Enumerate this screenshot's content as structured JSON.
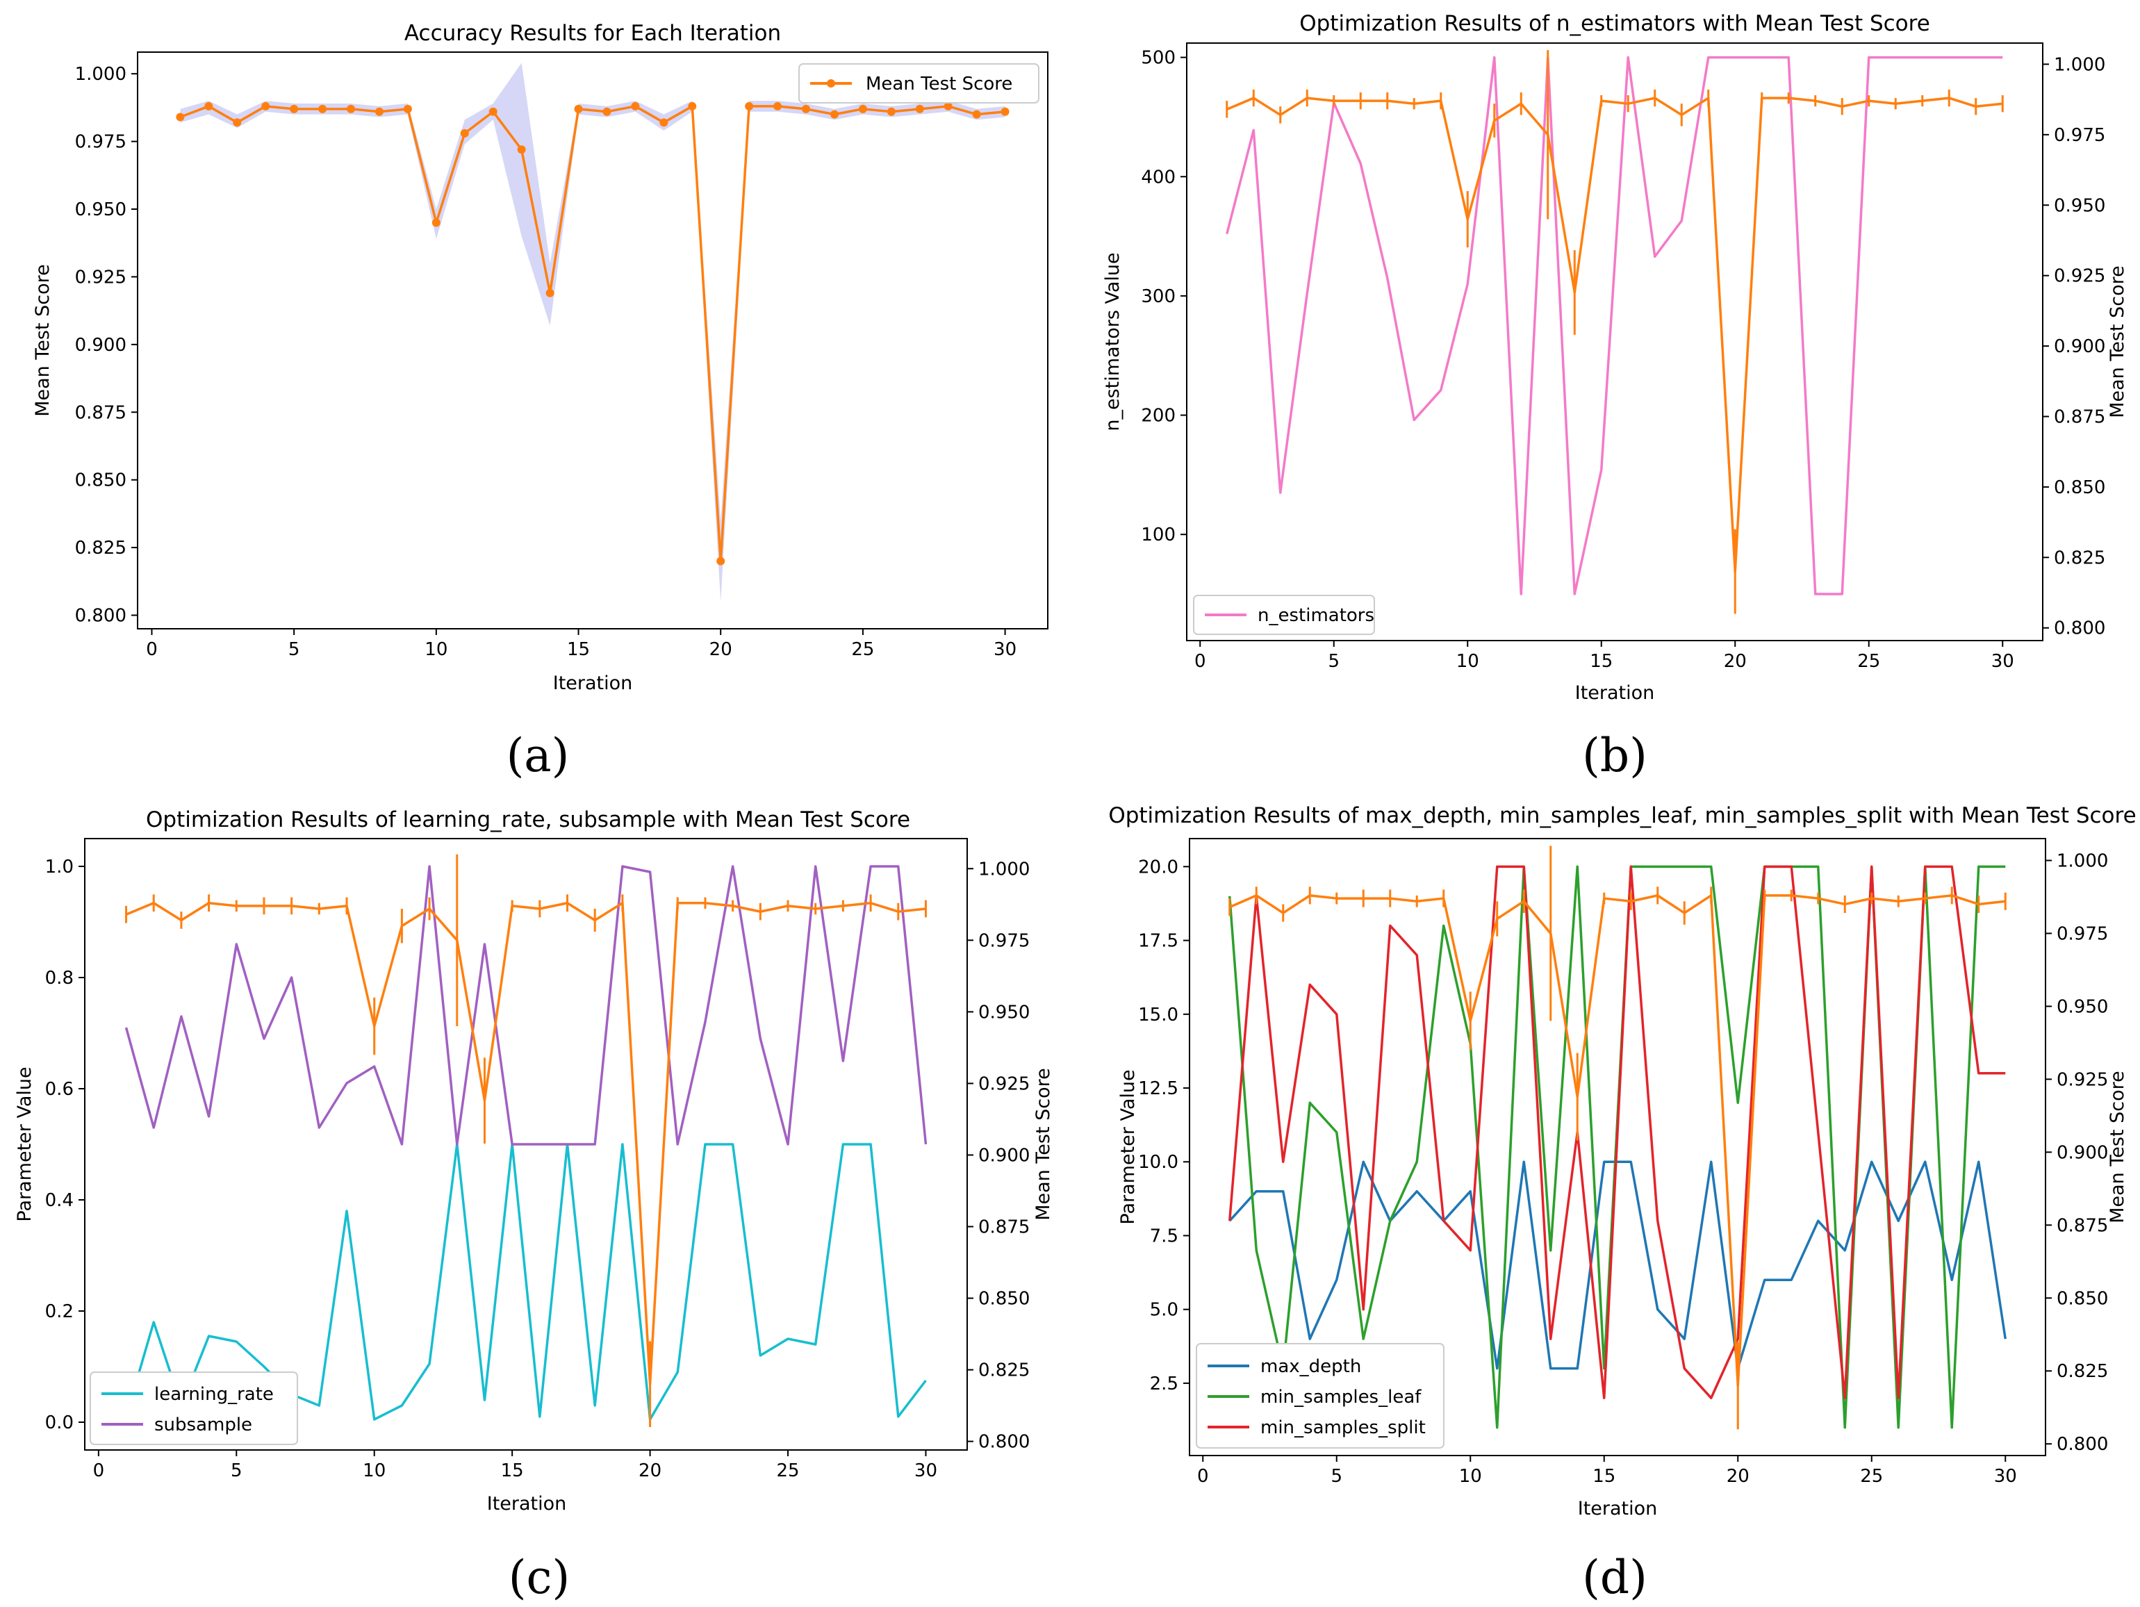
{
  "colors": {
    "orange": "#ff7f0e",
    "pink": "#f47ac8",
    "cyan": "#17becf",
    "purple": "#a160c2",
    "blue": "#1f77b4",
    "green": "#2ca02c",
    "red": "#e3242b",
    "band": "#c8c8f4"
  },
  "panel_labels": [
    "(a)",
    "(b)",
    "(c)",
    "(d)"
  ],
  "chart_data": [
    {
      "type": "line",
      "title": "Accuracy Results for Each Iteration",
      "xlabel": "Iteration",
      "ylabel": "Mean Test Score",
      "xlim": [
        -0.5,
        31.5
      ],
      "ylim": [
        0.795,
        1.008
      ],
      "xticks": [
        0,
        5,
        10,
        15,
        20,
        25,
        30
      ],
      "yticks": [
        0.8,
        0.825,
        0.85,
        0.875,
        0.9,
        0.925,
        0.95,
        0.975,
        1.0
      ],
      "ytick_labels": [
        "0.800",
        "0.825",
        "0.850",
        "0.875",
        "0.900",
        "0.925",
        "0.950",
        "0.975",
        "1.000"
      ],
      "legend_position": "top-right",
      "series": [
        {
          "name": "Mean Test Score",
          "x": [
            1,
            2,
            3,
            4,
            5,
            6,
            7,
            8,
            9,
            10,
            11,
            12,
            13,
            14,
            15,
            16,
            17,
            18,
            19,
            20,
            21,
            22,
            23,
            24,
            25,
            26,
            27,
            28,
            29,
            30
          ],
          "values": [
            0.984,
            0.988,
            0.982,
            0.988,
            0.987,
            0.987,
            0.987,
            0.986,
            0.987,
            0.945,
            0.978,
            0.986,
            0.972,
            0.919,
            0.987,
            0.986,
            0.988,
            0.982,
            0.988,
            0.82,
            0.988,
            0.988,
            0.987,
            0.985,
            0.987,
            0.986,
            0.987,
            0.988,
            0.985,
            0.986
          ],
          "band_lower": [
            0.982,
            0.985,
            0.98,
            0.986,
            0.985,
            0.985,
            0.985,
            0.984,
            0.985,
            0.939,
            0.974,
            0.983,
            0.94,
            0.907,
            0.985,
            0.984,
            0.986,
            0.979,
            0.986,
            0.805,
            0.986,
            0.986,
            0.985,
            0.983,
            0.985,
            0.984,
            0.985,
            0.986,
            0.983,
            0.984
          ],
          "band_upper": [
            0.987,
            0.99,
            0.985,
            0.99,
            0.989,
            0.989,
            0.989,
            0.988,
            0.989,
            0.95,
            0.983,
            0.989,
            1.004,
            0.93,
            0.989,
            0.988,
            0.99,
            0.985,
            0.99,
            0.835,
            0.99,
            0.99,
            0.989,
            0.987,
            0.989,
            0.988,
            0.989,
            0.99,
            0.987,
            0.988
          ]
        }
      ]
    },
    {
      "type": "line",
      "title": "Optimization Results of n_estimators with Mean Test Score",
      "xlabel": "Iteration",
      "ylabel": "n_estimators Value",
      "y2label": "Mean Test Score",
      "xlim": [
        -0.5,
        31.5
      ],
      "ylim": [
        11,
        512
      ],
      "y2lim": [
        0.7955,
        1.0075
      ],
      "xticks": [
        0,
        5,
        10,
        15,
        20,
        25,
        30
      ],
      "yticks": [
        100,
        200,
        300,
        400,
        500
      ],
      "ytick_labels": [
        "100",
        "200",
        "300",
        "400",
        "500"
      ],
      "y2ticks": [
        0.8,
        0.825,
        0.85,
        0.875,
        0.9,
        0.925,
        0.95,
        0.975,
        1.0
      ],
      "y2tick_labels": [
        "0.800",
        "0.825",
        "0.850",
        "0.875",
        "0.900",
        "0.925",
        "0.950",
        "0.975",
        "1.000"
      ],
      "legend_position": "bottom-left",
      "series": [
        {
          "name": "n_estimators",
          "axis": "left",
          "x": [
            1,
            2,
            3,
            4,
            5,
            6,
            7,
            8,
            9,
            10,
            11,
            12,
            13,
            14,
            15,
            16,
            17,
            18,
            19,
            20,
            21,
            22,
            23,
            24,
            25,
            26,
            27,
            28,
            29,
            30
          ],
          "values": [
            352,
            439,
            135,
            302,
            462,
            411,
            315,
            196,
            221,
            310,
            500,
            50,
            500,
            50,
            154,
            500,
            333,
            363,
            500,
            500,
            500,
            500,
            50,
            50,
            500,
            500,
            500,
            500,
            500,
            500
          ]
        },
        {
          "name": "Mean Test Score",
          "axis": "right",
          "x": [
            1,
            2,
            3,
            4,
            5,
            6,
            7,
            8,
            9,
            10,
            11,
            12,
            13,
            14,
            15,
            16,
            17,
            18,
            19,
            20,
            21,
            22,
            23,
            24,
            25,
            26,
            27,
            28,
            29,
            30
          ],
          "values": [
            0.984,
            0.988,
            0.982,
            0.988,
            0.987,
            0.987,
            0.987,
            0.986,
            0.987,
            0.945,
            0.98,
            0.986,
            0.975,
            0.919,
            0.987,
            0.986,
            0.988,
            0.982,
            0.988,
            0.82,
            0.988,
            0.988,
            0.987,
            0.985,
            0.987,
            0.986,
            0.987,
            0.988,
            0.985,
            0.986
          ],
          "error": [
            0.003,
            0.003,
            0.003,
            0.003,
            0.002,
            0.003,
            0.003,
            0.002,
            0.003,
            0.01,
            0.006,
            0.004,
            0.03,
            0.015,
            0.002,
            0.003,
            0.003,
            0.004,
            0.003,
            0.015,
            0.002,
            0.002,
            0.002,
            0.003,
            0.002,
            0.002,
            0.002,
            0.003,
            0.003,
            0.003
          ]
        }
      ]
    },
    {
      "type": "line",
      "title": "Optimization Results of learning_rate, subsample with Mean Test Score",
      "xlabel": "Iteration",
      "ylabel": "Parameter Value",
      "y2label": "Mean Test Score",
      "xlim": [
        -0.5,
        31.5
      ],
      "ylim": [
        -0.05,
        1.05
      ],
      "y2lim": [
        0.797,
        1.0105
      ],
      "xticks": [
        0,
        5,
        10,
        15,
        20,
        25,
        30
      ],
      "yticks": [
        0.0,
        0.2,
        0.4,
        0.6,
        0.8,
        1.0
      ],
      "ytick_labels": [
        "0.0",
        "0.2",
        "0.4",
        "0.6",
        "0.8",
        "1.0"
      ],
      "y2ticks": [
        0.8,
        0.825,
        0.85,
        0.875,
        0.9,
        0.925,
        0.95,
        0.975,
        1.0
      ],
      "y2tick_labels": [
        "0.800",
        "0.825",
        "0.850",
        "0.875",
        "0.900",
        "0.925",
        "0.950",
        "0.975",
        "1.000"
      ],
      "legend_position": "bottom-left",
      "series": [
        {
          "name": "learning_rate",
          "axis": "left",
          "x": [
            1,
            2,
            3,
            4,
            5,
            6,
            7,
            8,
            9,
            10,
            11,
            12,
            13,
            14,
            15,
            16,
            17,
            18,
            19,
            20,
            21,
            22,
            23,
            24,
            25,
            26,
            27,
            28,
            29,
            30
          ],
          "values": [
            0.01,
            0.18,
            0.03,
            0.155,
            0.145,
            0.1,
            0.05,
            0.03,
            0.38,
            0.005,
            0.03,
            0.105,
            0.5,
            0.04,
            0.5,
            0.01,
            0.5,
            0.03,
            0.5,
            0.005,
            0.09,
            0.5,
            0.5,
            0.12,
            0.15,
            0.14,
            0.5,
            0.5,
            0.01,
            0.075
          ]
        },
        {
          "name": "subsample",
          "axis": "left",
          "x": [
            1,
            2,
            3,
            4,
            5,
            6,
            7,
            8,
            9,
            10,
            11,
            12,
            13,
            14,
            15,
            16,
            17,
            18,
            19,
            20,
            21,
            22,
            23,
            24,
            25,
            26,
            27,
            28,
            29,
            30
          ],
          "values": [
            0.71,
            0.53,
            0.73,
            0.55,
            0.86,
            0.69,
            0.8,
            0.53,
            0.61,
            0.64,
            0.5,
            1.0,
            0.5,
            0.86,
            0.5,
            0.5,
            0.5,
            0.5,
            1.0,
            0.99,
            0.5,
            0.72,
            1.0,
            0.69,
            0.5,
            1.0,
            0.65,
            1.0,
            1.0,
            0.5
          ]
        },
        {
          "name": "Mean Test Score",
          "axis": "right",
          "x": [
            1,
            2,
            3,
            4,
            5,
            6,
            7,
            8,
            9,
            10,
            11,
            12,
            13,
            14,
            15,
            16,
            17,
            18,
            19,
            20,
            21,
            22,
            23,
            24,
            25,
            26,
            27,
            28,
            29,
            30
          ],
          "values": [
            0.984,
            0.988,
            0.982,
            0.988,
            0.987,
            0.987,
            0.987,
            0.986,
            0.987,
            0.945,
            0.98,
            0.986,
            0.975,
            0.919,
            0.987,
            0.986,
            0.988,
            0.982,
            0.988,
            0.82,
            0.988,
            0.988,
            0.987,
            0.985,
            0.987,
            0.986,
            0.987,
            0.988,
            0.985,
            0.986
          ],
          "error": [
            0.003,
            0.003,
            0.003,
            0.003,
            0.002,
            0.003,
            0.003,
            0.002,
            0.003,
            0.01,
            0.006,
            0.004,
            0.03,
            0.015,
            0.002,
            0.003,
            0.003,
            0.004,
            0.003,
            0.015,
            0.002,
            0.002,
            0.002,
            0.003,
            0.002,
            0.002,
            0.002,
            0.003,
            0.003,
            0.003
          ]
        }
      ]
    },
    {
      "type": "line",
      "title": "Optimization Results of max_depth, min_samples_leaf, min_samples_split with Mean Test Score",
      "xlabel": "Iteration",
      "ylabel": "Parameter Value",
      "y2label": "Mean Test Score",
      "xlim": [
        -0.5,
        31.5
      ],
      "ylim": [
        0.05,
        20.95
      ],
      "y2lim": [
        0.796,
        1.0075
      ],
      "xticks": [
        0,
        5,
        10,
        15,
        20,
        25,
        30
      ],
      "yticks": [
        2.5,
        5.0,
        7.5,
        10.0,
        12.5,
        15.0,
        17.5,
        20.0
      ],
      "ytick_labels": [
        "2.5",
        "5.0",
        "7.5",
        "10.0",
        "12.5",
        "15.0",
        "17.5",
        "20.0"
      ],
      "y2ticks": [
        0.8,
        0.825,
        0.85,
        0.875,
        0.9,
        0.925,
        0.95,
        0.975,
        1.0
      ],
      "y2tick_labels": [
        "0.800",
        "0.825",
        "0.850",
        "0.875",
        "0.900",
        "0.925",
        "0.950",
        "0.975",
        "1.000"
      ],
      "legend_position": "bottom-left",
      "series": [
        {
          "name": "max_depth",
          "axis": "left",
          "x": [
            1,
            2,
            3,
            4,
            5,
            6,
            7,
            8,
            9,
            10,
            11,
            12,
            13,
            14,
            15,
            16,
            17,
            18,
            19,
            20,
            21,
            22,
            23,
            24,
            25,
            26,
            27,
            28,
            29,
            30
          ],
          "values": [
            8,
            9,
            9,
            4,
            6,
            10,
            8,
            9,
            8,
            9,
            3,
            10,
            3,
            3,
            10,
            10,
            5,
            4,
            10,
            3,
            6,
            6,
            8,
            7,
            10,
            8,
            10,
            6,
            10,
            4
          ]
        },
        {
          "name": "min_samples_leaf",
          "axis": "left",
          "x": [
            1,
            2,
            3,
            4,
            5,
            6,
            7,
            8,
            9,
            10,
            11,
            12,
            13,
            14,
            15,
            16,
            17,
            18,
            19,
            20,
            21,
            22,
            23,
            24,
            25,
            26,
            27,
            28,
            29,
            30
          ],
          "values": [
            19,
            7,
            3,
            12,
            11,
            4,
            8,
            10,
            18,
            14,
            1,
            20,
            7,
            20,
            3,
            20,
            20,
            20,
            20,
            12,
            20,
            20,
            20,
            1,
            20,
            1,
            20,
            1,
            20,
            20
          ]
        },
        {
          "name": "min_samples_split",
          "axis": "left",
          "x": [
            1,
            2,
            3,
            4,
            5,
            6,
            7,
            8,
            9,
            10,
            11,
            12,
            13,
            14,
            15,
            16,
            17,
            18,
            19,
            20,
            21,
            22,
            23,
            24,
            25,
            26,
            27,
            28,
            29,
            30
          ],
          "values": [
            8,
            19,
            10,
            16,
            15,
            5,
            18,
            17,
            8,
            7,
            20,
            20,
            4,
            11,
            2,
            20,
            8,
            3,
            2,
            4,
            20,
            20,
            11,
            2,
            20,
            2,
            20,
            20,
            13,
            13
          ]
        },
        {
          "name": "Mean Test Score",
          "axis": "right",
          "x": [
            1,
            2,
            3,
            4,
            5,
            6,
            7,
            8,
            9,
            10,
            11,
            12,
            13,
            14,
            15,
            16,
            17,
            18,
            19,
            20,
            21,
            22,
            23,
            24,
            25,
            26,
            27,
            28,
            29,
            30
          ],
          "values": [
            0.984,
            0.988,
            0.982,
            0.988,
            0.987,
            0.987,
            0.987,
            0.986,
            0.987,
            0.945,
            0.98,
            0.986,
            0.975,
            0.919,
            0.987,
            0.986,
            0.988,
            0.982,
            0.988,
            0.82,
            0.988,
            0.988,
            0.987,
            0.985,
            0.987,
            0.986,
            0.987,
            0.988,
            0.985,
            0.986
          ],
          "error": [
            0.003,
            0.003,
            0.003,
            0.003,
            0.002,
            0.003,
            0.003,
            0.002,
            0.003,
            0.01,
            0.006,
            0.004,
            0.03,
            0.015,
            0.002,
            0.003,
            0.003,
            0.004,
            0.003,
            0.015,
            0.002,
            0.002,
            0.002,
            0.003,
            0.002,
            0.002,
            0.002,
            0.003,
            0.003,
            0.003
          ]
        }
      ]
    }
  ]
}
